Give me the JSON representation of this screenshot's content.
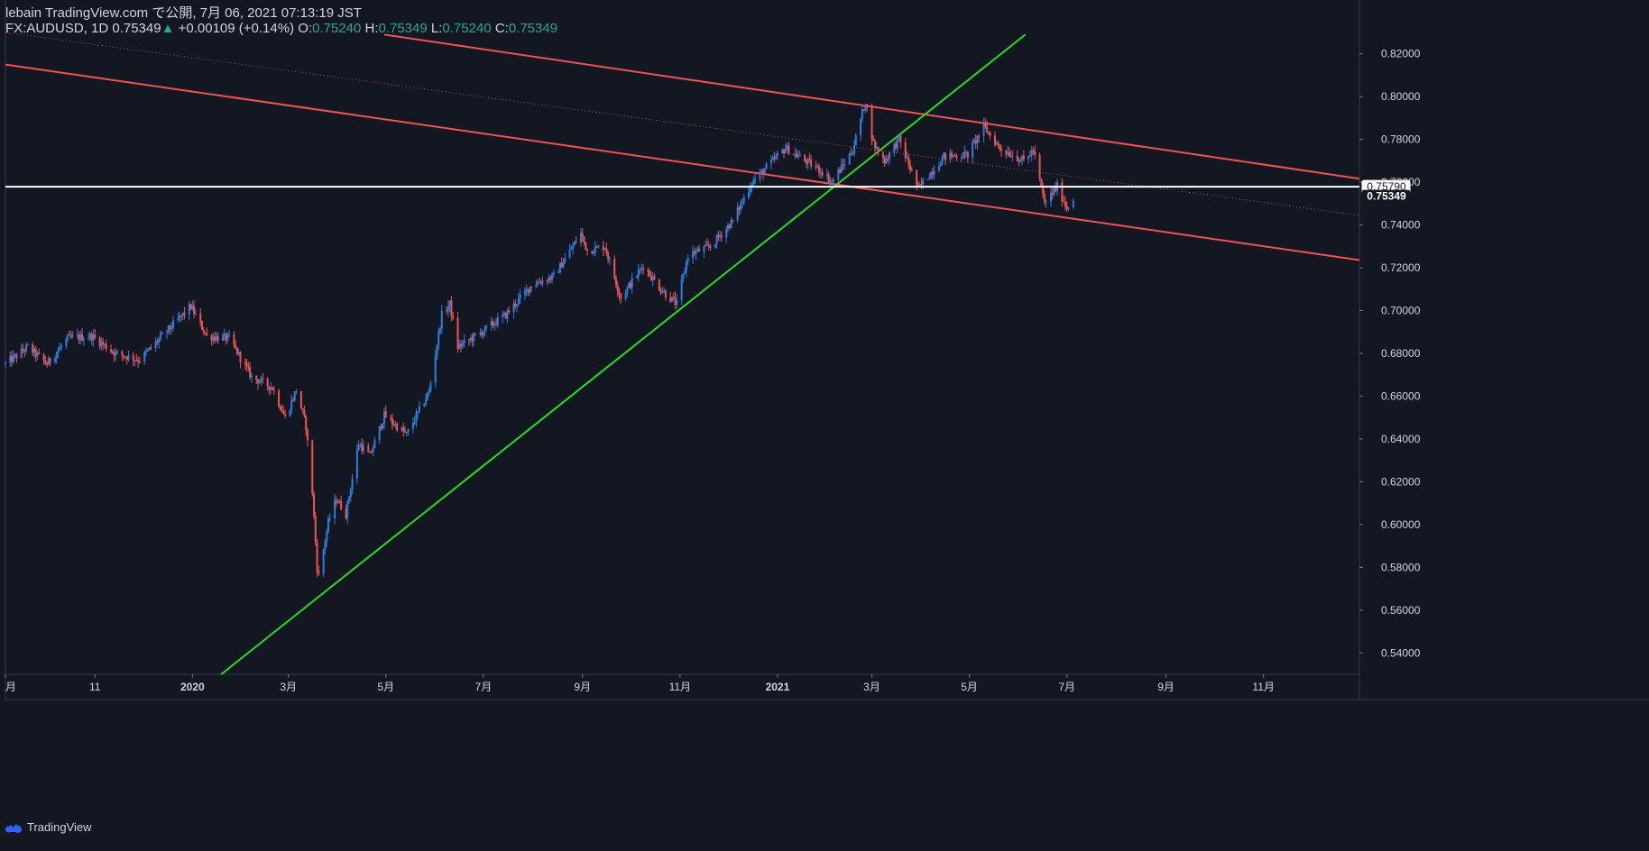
{
  "header": {
    "title": "lebain TradingView.com で公開, 7月 06, 2021 07:13:19 JST",
    "symbol": "FX:AUDUSD, 1D",
    "price": "0.75349",
    "arrow": "▲",
    "change": "+0.00109 (+0.14%)",
    "o_label": "O:",
    "o_value": "0.75240",
    "h_label": "H:",
    "h_value": "0.75349",
    "l_label": "L:",
    "l_value": "0.75240",
    "c_label": "C:",
    "c_value": "0.75349"
  },
  "footer": {
    "brand": "TradingView"
  },
  "colors": {
    "background": "#131722",
    "up": "#2e7de0",
    "down": "#ef5350",
    "channel": "#ef5350",
    "trend": "#22dd22",
    "hline": "#ffffff",
    "text": "#d1d4dc",
    "positive": "#26a69a"
  },
  "chart_data": {
    "type": "candlestick",
    "symbol": "FX:AUDUSD",
    "interval": "1D",
    "y_axis": {
      "min": 0.53,
      "max": 0.83,
      "position": "right",
      "ticks": [
        0.54,
        0.56,
        0.58,
        0.6,
        0.62,
        0.64,
        0.66,
        0.68,
        0.7,
        0.72,
        0.74,
        0.76,
        0.78,
        0.8,
        0.82
      ],
      "tick_labels": [
        "0.54000",
        "0.56000",
        "0.58000",
        "0.60000",
        "0.62000",
        "0.64000",
        "0.66000",
        "0.68000",
        "0.70000",
        "0.72000",
        "0.74000",
        "0.76000",
        "0.78000",
        "0.80000",
        "0.82000"
      ]
    },
    "x_axis": {
      "range": [
        "2019-09-06",
        "2021-12-31"
      ],
      "tick_dates": [
        "2019-09-06",
        "2019-11-01",
        "2020-01-01",
        "2020-03-01",
        "2020-05-01",
        "2020-07-01",
        "2020-09-01",
        "2020-11-01",
        "2021-01-01",
        "2021-03-01",
        "2021-05-01",
        "2021-07-01",
        "2021-09-01",
        "2021-11-01"
      ],
      "tick_labels": [
        "月",
        "11",
        "2020",
        "3月",
        "5月",
        "7月",
        "9月",
        "11月",
        "2021",
        "3月",
        "5月",
        "7月",
        "9月",
        "11月"
      ],
      "bold_ticks": [
        "2020",
        "2021"
      ]
    },
    "price_path": [
      [
        "2019-09-06",
        0.675
      ],
      [
        "2019-09-20",
        0.683
      ],
      [
        "2019-10-02",
        0.675
      ],
      [
        "2019-10-15",
        0.687
      ],
      [
        "2019-10-30",
        0.688
      ],
      [
        "2019-11-14",
        0.68
      ],
      [
        "2019-11-29",
        0.677
      ],
      [
        "2019-12-13",
        0.688
      ],
      [
        "2019-12-31",
        0.702
      ],
      [
        "2020-01-10",
        0.688
      ],
      [
        "2020-01-24",
        0.687
      ],
      [
        "2020-02-07",
        0.669
      ],
      [
        "2020-02-20",
        0.664
      ],
      [
        "2020-02-28",
        0.65
      ],
      [
        "2020-03-06",
        0.663
      ],
      [
        "2020-03-12",
        0.646
      ],
      [
        "2020-03-16",
        0.615
      ],
      [
        "2020-03-19",
        0.58
      ],
      [
        "2020-03-20",
        0.576
      ],
      [
        "2020-03-26",
        0.601
      ],
      [
        "2020-03-31",
        0.612
      ],
      [
        "2020-04-06",
        0.605
      ],
      [
        "2020-04-14",
        0.638
      ],
      [
        "2020-04-21",
        0.632
      ],
      [
        "2020-04-30",
        0.651
      ],
      [
        "2020-05-14",
        0.642
      ],
      [
        "2020-05-28",
        0.662
      ],
      [
        "2020-06-05",
        0.698
      ],
      [
        "2020-06-10",
        0.703
      ],
      [
        "2020-06-15",
        0.683
      ],
      [
        "2020-06-30",
        0.69
      ],
      [
        "2020-07-15",
        0.698
      ],
      [
        "2020-07-31",
        0.712
      ],
      [
        "2020-08-14",
        0.716
      ],
      [
        "2020-08-31",
        0.736
      ],
      [
        "2020-09-04",
        0.728
      ],
      [
        "2020-09-15",
        0.73
      ],
      [
        "2020-09-25",
        0.706
      ],
      [
        "2020-10-09",
        0.721
      ],
      [
        "2020-10-20",
        0.71
      ],
      [
        "2020-10-30",
        0.703
      ],
      [
        "2020-11-06",
        0.726
      ],
      [
        "2020-11-20",
        0.73
      ],
      [
        "2020-12-04",
        0.742
      ],
      [
        "2020-12-16",
        0.76
      ],
      [
        "2021-01-06",
        0.776
      ],
      [
        "2021-01-14",
        0.772
      ],
      [
        "2021-01-29",
        0.765
      ],
      [
        "2021-02-04",
        0.76
      ],
      [
        "2021-02-17",
        0.775
      ],
      [
        "2021-02-25",
        0.798
      ],
      [
        "2021-03-02",
        0.778
      ],
      [
        "2021-03-09",
        0.77
      ],
      [
        "2021-03-18",
        0.78
      ],
      [
        "2021-03-30",
        0.757
      ],
      [
        "2021-04-15",
        0.772
      ],
      [
        "2021-04-30",
        0.773
      ],
      [
        "2021-05-10",
        0.786
      ],
      [
        "2021-05-20",
        0.776
      ],
      [
        "2021-06-04",
        0.77
      ],
      [
        "2021-06-10",
        0.775
      ],
      [
        "2021-06-17",
        0.75
      ],
      [
        "2021-06-25",
        0.758
      ],
      [
        "2021-07-01",
        0.748
      ],
      [
        "2021-07-05",
        0.753
      ]
    ],
    "drawings": [
      {
        "name": "channel-upper",
        "type": "trendline",
        "color": "#ef5350",
        "points": [
          [
            "2020-04-30",
            0.829
          ],
          [
            "2022-01-15",
            0.76
          ]
        ]
      },
      {
        "name": "channel-middle",
        "type": "dotted-trendline",
        "color": "#ef5350",
        "points": [
          [
            "2019-09-06",
            0.83
          ],
          [
            "2022-01-15",
            0.743
          ]
        ]
      },
      {
        "name": "channel-lower",
        "type": "trendline",
        "color": "#ef5350",
        "points": [
          [
            "2019-09-06",
            0.815
          ],
          [
            "2022-01-15",
            0.722
          ]
        ]
      },
      {
        "name": "support-trendline",
        "type": "trendline",
        "color": "#22dd22",
        "points": [
          [
            "2020-01-19",
            0.53
          ],
          [
            "2021-06-05",
            0.829
          ]
        ]
      },
      {
        "name": "horizontal-level",
        "type": "hline",
        "color": "#ffffff",
        "value": 0.7579
      }
    ],
    "price_labels": [
      {
        "value": 0.7579,
        "text": "0.75790",
        "style": "outline"
      },
      {
        "value": 0.75349,
        "text": "0.75349",
        "style": "filled"
      }
    ]
  }
}
